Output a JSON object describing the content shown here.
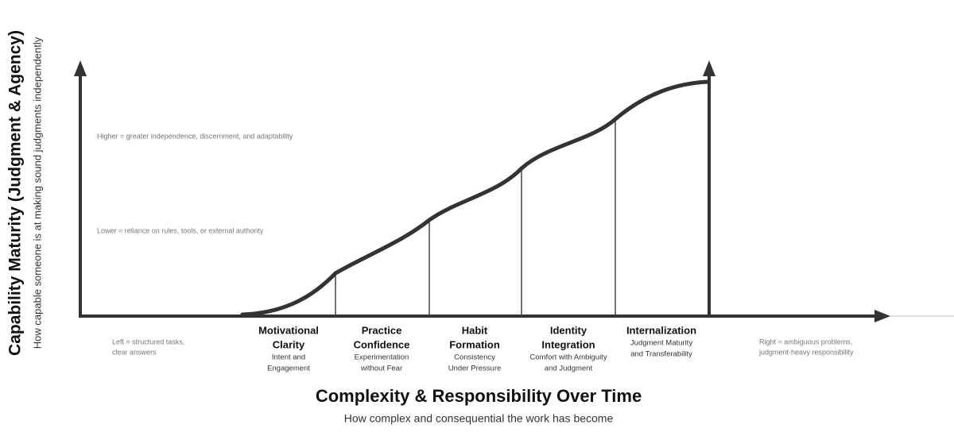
{
  "y_axis": {
    "title": "Capability Maturity (Judgment & Agency)",
    "subtitle": "How capable someone is at making sound judgments independently"
  },
  "notes": {
    "higher": "Higher = greater independence, discernment, and adaptability",
    "lower": "Lower = reliance on rules, tools, or external authority",
    "left": [
      "Left = structured tasks,",
      "clear answers"
    ],
    "right": [
      "Right = ambiguous problems,",
      "judgment-heavy responsibility"
    ]
  },
  "stages": [
    {
      "title": [
        "Motivational",
        "Clarity"
      ],
      "description": [
        "Intent and",
        "Engagement"
      ]
    },
    {
      "title": [
        "Practice",
        "Confidence"
      ],
      "description": [
        "Experimentation",
        "without Fear"
      ]
    },
    {
      "title": [
        "Habit",
        "Formation"
      ],
      "description": [
        "Consistency",
        "Under Pressure"
      ]
    },
    {
      "title": [
        "Identity",
        "Integration"
      ],
      "description": [
        "Comfort with Ambiguity",
        "and Judgment"
      ]
    },
    {
      "title": [
        "Internalization"
      ],
      "description": [
        "Judgment Maturity",
        "and Transferability"
      ]
    }
  ],
  "x_axis": {
    "title": "Complexity & Responsibility Over Time",
    "subtitle": "How complex and consequential the work has become"
  }
}
